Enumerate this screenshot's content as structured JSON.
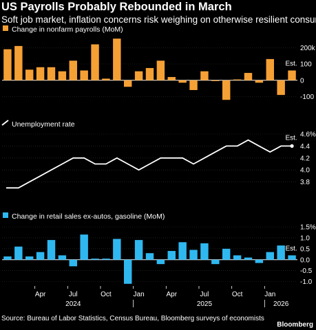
{
  "title": "US Payrolls Probably Rebounded in March",
  "subtitle": "Soft job market, inflation concerns risk weighing on otherwise resilient consumer",
  "source": "Source: Bureau of Labor Statistics, Census Bureau, Bloomberg surveys of economists",
  "brand": "Bloomberg",
  "colors": {
    "payrolls": "#f5a035",
    "unemployment": "#ffffff",
    "retail": "#2fb8f0",
    "background": "#000000",
    "zero_line": "#ffffff",
    "gridline": "#333333"
  },
  "chart_data": [
    {
      "type": "bar",
      "legend": "Change in nonfarm payrolls (MoM)",
      "annotation": "Est.",
      "months": [
        "Jan 2024",
        "Feb 2024",
        "Mar 2024",
        "Apr 2024",
        "May 2024",
        "Jun 2024",
        "Jul 2024",
        "Aug 2024",
        "Sep 2024",
        "Oct 2024",
        "Nov 2024",
        "Dec 2024",
        "Jan 2025",
        "Feb 2025",
        "Mar 2025",
        "Apr 2025",
        "May 2025",
        "Jun 2025",
        "Jul 2025",
        "Aug 2025",
        "Sep 2025",
        "Oct 2025",
        "Nov 2025",
        "Dec 2025",
        "Jan 2026",
        "Feb 2026",
        "Mar 2026"
      ],
      "values": [
        190,
        210,
        65,
        80,
        80,
        55,
        120,
        60,
        220,
        10,
        255,
        -40,
        55,
        75,
        120,
        20,
        -15,
        -60,
        55,
        -5,
        -120,
        5,
        45,
        -15,
        130,
        -90,
        60
      ],
      "estimate_index": 26,
      "ylim": [
        -140,
        260
      ],
      "ticks": [
        200,
        100,
        0,
        -100
      ],
      "tick_labels": [
        "200k",
        "100",
        "0",
        "-100"
      ]
    },
    {
      "type": "line",
      "legend": "Unemployment rate",
      "annotation": "Est.",
      "months": [
        "Jan 2024",
        "Feb 2024",
        "Mar 2024",
        "Apr 2024",
        "May 2024",
        "Jun 2024",
        "Jul 2024",
        "Aug 2024",
        "Sep 2024",
        "Oct 2024",
        "Nov 2024",
        "Dec 2024",
        "Jan 2025",
        "Feb 2025",
        "Mar 2025",
        "Apr 2025",
        "May 2025",
        "Jun 2025",
        "Jul 2025",
        "Aug 2025",
        "Sep 2025",
        "Oct 2025",
        "Nov 2025",
        "Dec 2025",
        "Jan 2026",
        "Feb 2026",
        "Mar 2026"
      ],
      "values": [
        3.7,
        3.7,
        3.8,
        3.9,
        4.0,
        4.1,
        4.2,
        4.2,
        4.1,
        4.1,
        4.2,
        4.1,
        4.0,
        4.1,
        4.2,
        4.2,
        4.2,
        4.1,
        4.2,
        4.3,
        4.4,
        4.4,
        4.5,
        4.4,
        4.3,
        4.4,
        4.4
      ],
      "estimate_index": 26,
      "ylim": [
        3.6,
        4.6
      ],
      "ticks": [
        4.6,
        4.4,
        4.2,
        4.0,
        3.8
      ],
      "tick_labels": [
        "4.6%",
        "4.4",
        "4.2",
        "4.0",
        "3.8"
      ]
    },
    {
      "type": "bar",
      "legend": "Change in retail sales ex-autos, gasoline (MoM)",
      "annotation": "Est.",
      "months": [
        "Jan 2024",
        "Feb 2024",
        "Mar 2024",
        "Apr 2024",
        "May 2024",
        "Jun 2024",
        "Jul 2024",
        "Aug 2024",
        "Sep 2024",
        "Oct 2024",
        "Nov 2024",
        "Dec 2024",
        "Jan 2025",
        "Feb 2025",
        "Mar 2025",
        "Apr 2025",
        "May 2025",
        "Jun 2025",
        "Jul 2025",
        "Aug 2025",
        "Sep 2025",
        "Oct 2025",
        "Nov 2025",
        "Dec 2025",
        "Jan 2026",
        "Feb 2026",
        "Mar 2026"
      ],
      "values": [
        0.15,
        0.6,
        0.15,
        0.35,
        0.9,
        0.2,
        -0.3,
        1.15,
        0.05,
        0.05,
        0.95,
        -1.1,
        0.9,
        0.3,
        -0.2,
        0.4,
        0.8,
        0.45,
        0.75,
        -0.2,
        0.5,
        0.2,
        0.1,
        -0.15,
        0.35,
        0.65,
        0.2
      ],
      "estimate_index": 26,
      "ylim": [
        -1.2,
        1.5
      ],
      "ticks": [
        1.5,
        1.0,
        0.5,
        0.0,
        -0.5,
        -1.0
      ],
      "tick_labels": [
        "1.5%",
        "1.0",
        "0.5",
        "0.0",
        "-0.5",
        "-1.0"
      ]
    }
  ],
  "x_axis": {
    "month_ticks": [
      {
        "index": 3,
        "label": "Apr"
      },
      {
        "index": 6,
        "label": "Jul"
      },
      {
        "index": 9,
        "label": "Oct"
      },
      {
        "index": 12,
        "label": "Jan"
      },
      {
        "index": 15,
        "label": "Apr"
      },
      {
        "index": 18,
        "label": "Jul"
      },
      {
        "index": 21,
        "label": "Oct"
      },
      {
        "index": 24,
        "label": "Jan"
      }
    ],
    "year_labels": [
      {
        "label": "2024",
        "index": 6
      },
      {
        "label": "2025",
        "index": 18
      },
      {
        "label": "2026",
        "index": 25
      }
    ]
  }
}
